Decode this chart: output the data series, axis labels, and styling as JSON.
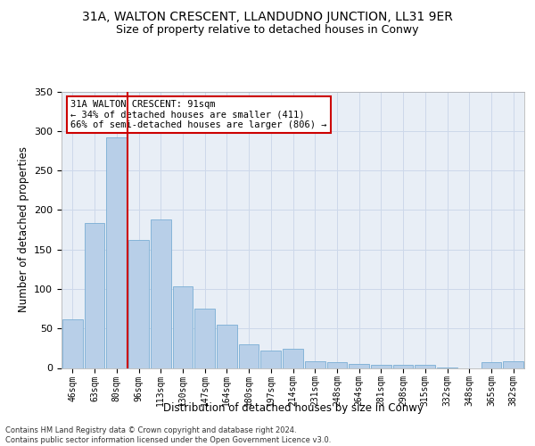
{
  "title": "31A, WALTON CRESCENT, LLANDUDNO JUNCTION, LL31 9ER",
  "subtitle": "Size of property relative to detached houses in Conwy",
  "xlabel": "Distribution of detached houses by size in Conwy",
  "ylabel": "Number of detached properties",
  "categories": [
    "46sqm",
    "63sqm",
    "80sqm",
    "96sqm",
    "113sqm",
    "130sqm",
    "147sqm",
    "164sqm",
    "180sqm",
    "197sqm",
    "214sqm",
    "231sqm",
    "248sqm",
    "264sqm",
    "281sqm",
    "298sqm",
    "315sqm",
    "332sqm",
    "348sqm",
    "365sqm",
    "382sqm"
  ],
  "bar_heights": [
    62,
    184,
    292,
    162,
    188,
    103,
    75,
    55,
    30,
    22,
    24,
    9,
    7,
    5,
    4,
    4,
    4,
    1,
    0,
    7,
    8
  ],
  "bar_color": "#b8cfe8",
  "bar_edge_color": "#7aadd4",
  "grid_color": "#cdd8ea",
  "background_color": "#e8eef6",
  "vline_color": "#cc0000",
  "vline_pos": 2.5,
  "annotation_text": "31A WALTON CRESCENT: 91sqm\n← 34% of detached houses are smaller (411)\n66% of semi-detached houses are larger (806) →",
  "annotation_box_color": "#ffffff",
  "annotation_box_edge": "#cc0000",
  "ylim": [
    0,
    350
  ],
  "yticks": [
    0,
    50,
    100,
    150,
    200,
    250,
    300,
    350
  ],
  "footer": "Contains HM Land Registry data © Crown copyright and database right 2024.\nContains public sector information licensed under the Open Government Licence v3.0.",
  "title_fontsize": 10,
  "subtitle_fontsize": 9,
  "xlabel_fontsize": 8.5,
  "ylabel_fontsize": 8.5,
  "tick_fontsize": 8,
  "annot_fontsize": 7.5
}
